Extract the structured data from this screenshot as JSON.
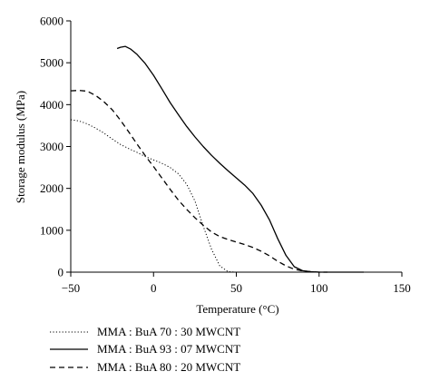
{
  "chart_data": {
    "type": "line",
    "xlabel": "Temperature (°C)",
    "ylabel": "Storage modulus (MPa)",
    "xlim": [
      -50,
      150
    ],
    "ylim": [
      0,
      6000
    ],
    "xticks": [
      -50,
      0,
      50,
      100,
      150
    ],
    "yticks": [
      0,
      1000,
      2000,
      3000,
      4000,
      5000,
      6000
    ],
    "xtick_labels": [
      "−50",
      "0",
      "50",
      "100",
      "150"
    ],
    "ytick_labels": [
      "0",
      "1000",
      "2000",
      "3000",
      "4000",
      "5000",
      "6000"
    ],
    "grid": false,
    "legend_position": "bottom",
    "series": [
      {
        "name": "MMA : BuA 70 : 30 MWCNT",
        "style": "dotted",
        "color": "#000000",
        "x": [
          -50,
          -45,
          -40,
          -35,
          -30,
          -25,
          -20,
          -15,
          -10,
          -5,
          0,
          5,
          10,
          15,
          20,
          25,
          30,
          35,
          40,
          45,
          50,
          60,
          80,
          100,
          120,
          125
        ],
        "y": [
          3640,
          3610,
          3540,
          3440,
          3320,
          3180,
          3050,
          2950,
          2860,
          2760,
          2680,
          2600,
          2500,
          2350,
          2100,
          1700,
          1100,
          550,
          150,
          10,
          0,
          0,
          0,
          0,
          0,
          0
        ]
      },
      {
        "name": "MMA : BuA 93 : 07 MWCNT",
        "style": "solid",
        "color": "#000000",
        "x": [
          -22,
          -20,
          -17,
          -14,
          -10,
          -5,
          0,
          5,
          10,
          15,
          20,
          25,
          30,
          35,
          40,
          45,
          50,
          55,
          60,
          65,
          70,
          75,
          80,
          85,
          90,
          95,
          100,
          110,
          120,
          127
        ],
        "y": [
          5340,
          5370,
          5390,
          5330,
          5200,
          4980,
          4700,
          4380,
          4050,
          3760,
          3480,
          3230,
          3000,
          2790,
          2600,
          2420,
          2250,
          2080,
          1880,
          1600,
          1250,
          800,
          400,
          130,
          35,
          10,
          0,
          0,
          0,
          0
        ]
      },
      {
        "name": "MMA : BuA 80 : 20 MWCNT",
        "style": "dashed",
        "color": "#000000",
        "x": [
          -50,
          -45,
          -40,
          -35,
          -30,
          -25,
          -20,
          -15,
          -10,
          -5,
          0,
          5,
          10,
          15,
          20,
          25,
          30,
          35,
          40,
          45,
          50,
          55,
          60,
          65,
          70,
          75,
          80,
          85,
          90,
          95,
          100,
          105
        ],
        "y": [
          4330,
          4340,
          4320,
          4220,
          4070,
          3880,
          3630,
          3350,
          3060,
          2780,
          2520,
          2250,
          1980,
          1720,
          1500,
          1300,
          1120,
          960,
          850,
          780,
          720,
          660,
          590,
          500,
          390,
          260,
          150,
          70,
          30,
          10,
          0,
          0
        ]
      }
    ]
  }
}
